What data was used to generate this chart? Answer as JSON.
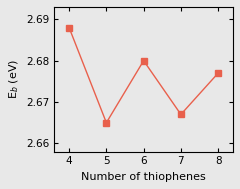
{
  "x": [
    4,
    5,
    6,
    7,
    8
  ],
  "y": [
    2.688,
    2.665,
    2.68,
    2.667,
    2.677
  ],
  "color": "#E8604C",
  "marker": "s",
  "markersize": 4,
  "linewidth": 1.0,
  "xlabel": "Number of thiophenes",
  "ylabel": "E$_b$ (eV)",
  "xlim": [
    3.6,
    8.4
  ],
  "ylim": [
    2.658,
    2.693
  ],
  "yticks": [
    2.66,
    2.67,
    2.68,
    2.69
  ],
  "xticks": [
    4,
    5,
    6,
    7,
    8
  ],
  "axis_fontsize": 8,
  "tick_fontsize": 7.5,
  "background_color": "#e8e8e8"
}
